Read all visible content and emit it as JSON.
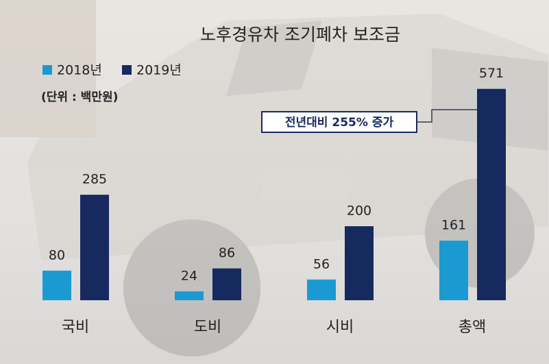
{
  "chart_data": {
    "type": "bar",
    "title": "노후경유차 조기폐차 보조금",
    "unit": "(단위 : 백만원)",
    "annotation": "전년대비 255% 증가",
    "categories": [
      "국비",
      "도비",
      "시비",
      "총액"
    ],
    "series": [
      {
        "name": "2018년",
        "color": "#1b9ad2",
        "values": [
          80,
          24,
          56,
          161
        ]
      },
      {
        "name": "2019년",
        "color": "#162a5f",
        "values": [
          285,
          86,
          200,
          571
        ]
      }
    ]
  }
}
